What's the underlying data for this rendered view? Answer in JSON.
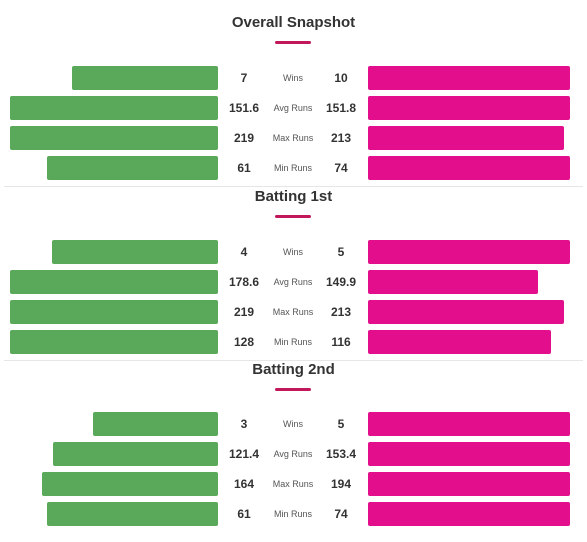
{
  "colors": {
    "left_team": "#5aa95a",
    "right_team": "#e20e8b",
    "accent": "#c2185b"
  },
  "sections": [
    {
      "title": "Overall Snapshot",
      "rows": [
        {
          "label": "Wins",
          "left": 7,
          "right": 10,
          "left_display": "7",
          "right_display": "10"
        },
        {
          "label": "Avg Runs",
          "left": 151.6,
          "right": 151.8,
          "left_display": "151.6",
          "right_display": "151.8"
        },
        {
          "label": "Max Runs",
          "left": 219,
          "right": 213,
          "left_display": "219",
          "right_display": "213"
        },
        {
          "label": "Min Runs",
          "left": 61,
          "right": 74,
          "left_display": "61",
          "right_display": "74"
        }
      ]
    },
    {
      "title": "Batting 1st",
      "rows": [
        {
          "label": "Wins",
          "left": 4,
          "right": 5,
          "left_display": "4",
          "right_display": "5"
        },
        {
          "label": "Avg Runs",
          "left": 178.6,
          "right": 149.9,
          "left_display": "178.6",
          "right_display": "149.9"
        },
        {
          "label": "Max Runs",
          "left": 219,
          "right": 213,
          "left_display": "219",
          "right_display": "213"
        },
        {
          "label": "Min Runs",
          "left": 128,
          "right": 116,
          "left_display": "128",
          "right_display": "116"
        }
      ]
    },
    {
      "title": "Batting 2nd",
      "rows": [
        {
          "label": "Wins",
          "left": 3,
          "right": 5,
          "left_display": "3",
          "right_display": "5"
        },
        {
          "label": "Avg Runs",
          "left": 121.4,
          "right": 153.4,
          "left_display": "121.4",
          "right_display": "153.4"
        },
        {
          "label": "Max Runs",
          "left": 164,
          "right": 194,
          "left_display": "164",
          "right_display": "194"
        },
        {
          "label": "Min Runs",
          "left": 61,
          "right": 74,
          "left_display": "61",
          "right_display": "74"
        }
      ]
    }
  ]
}
